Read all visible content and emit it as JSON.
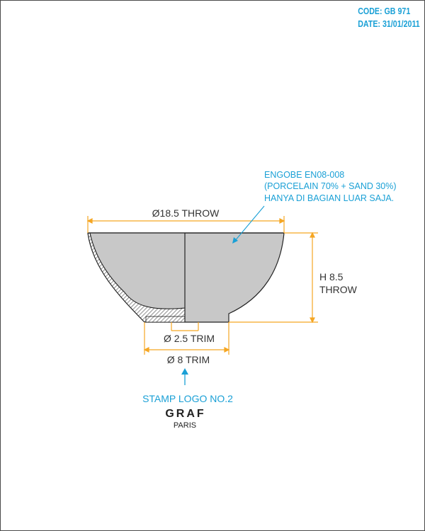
{
  "header": {
    "code": "CODE: GB 971",
    "date": "DATE: 31/01/2011"
  },
  "dimensions": {
    "rim_diameter": "Ø18.5 THROW",
    "foot_inner": "Ø 2.5 TRIM",
    "foot_outer": "Ø 8 TRIM",
    "height_line1": "H 8.5",
    "height_line2": "THROW"
  },
  "note": {
    "line1": "ENGOBE EN08-008",
    "line2": "(PORCELAIN 70% + SAND 30%)",
    "line3": "HANYA DI BAGIAN LUAR SAJA."
  },
  "stamp": {
    "label": "STAMP LOGO NO.2",
    "brand": "GRAF",
    "city": "PARIS"
  },
  "colors": {
    "dimension_lines": "#f5a623",
    "annotation": "#1aa0d6",
    "body_fill": "#c8c8c8",
    "outline": "#222222"
  }
}
